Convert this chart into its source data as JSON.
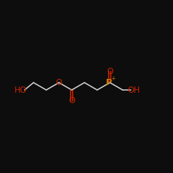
{
  "background_color": "#0d0d0d",
  "bond_color": "#d0d0d0",
  "bond_width": 1.2,
  "atom_colors": {
    "O": "#cc2200",
    "P": "#cc7700",
    "C": "#d0d0d0",
    "H": "#d0d0d0"
  },
  "label_fontsize": 8.5,
  "p_fontsize": 8.5,
  "figsize": [
    2.5,
    2.5
  ],
  "dpi": 100,
  "xlim": [
    0,
    10
  ],
  "ylim": [
    2,
    8
  ]
}
